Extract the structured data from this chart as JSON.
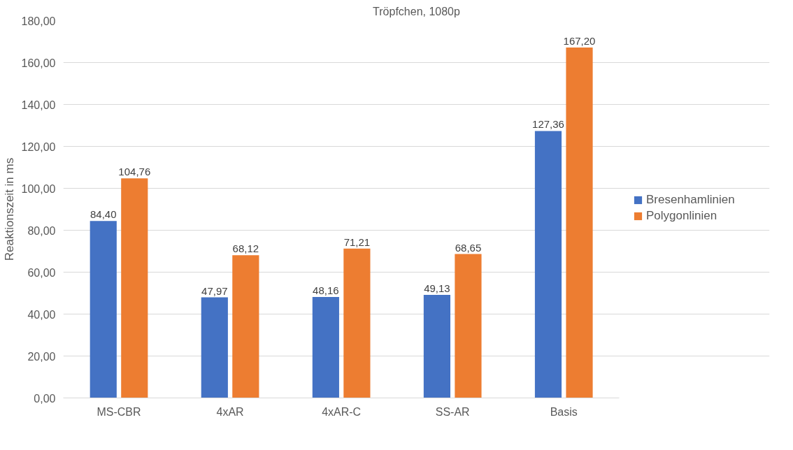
{
  "chart_data": {
    "type": "bar",
    "title": "Tröpfchen, 1080p",
    "ylabel": "Reaktionszeit in ms",
    "categories": [
      "MS-CBR",
      "4xAR",
      "4xAR-C",
      "SS-AR",
      "Basis"
    ],
    "series": [
      {
        "name": "Bresenhamlinien",
        "color": "#4472c4",
        "values": [
          84.4,
          47.97,
          48.16,
          49.13,
          127.36
        ],
        "value_labels": [
          "84,40",
          "47,97",
          "48,16",
          "49,13",
          "127,36"
        ]
      },
      {
        "name": "Polygonlinien",
        "color": "#ed7d31",
        "values": [
          104.76,
          68.12,
          71.21,
          68.65,
          167.2
        ],
        "value_labels": [
          "104,76",
          "68,12",
          "71,21",
          "68,65",
          "167,20"
        ]
      }
    ],
    "ylim": [
      0,
      180
    ],
    "yticks": [
      {
        "value": 0,
        "label": "0,00"
      },
      {
        "value": 20,
        "label": "20,00"
      },
      {
        "value": 40,
        "label": "40,00"
      },
      {
        "value": 60,
        "label": "60,00"
      },
      {
        "value": 80,
        "label": "80,00"
      },
      {
        "value": 100,
        "label": "100,00"
      },
      {
        "value": 120,
        "label": "120,00"
      },
      {
        "value": 140,
        "label": "140,00"
      },
      {
        "value": 160,
        "label": "160,00"
      },
      {
        "value": 180,
        "label": "180,00"
      }
    ],
    "grid": "y",
    "legend": "right"
  }
}
